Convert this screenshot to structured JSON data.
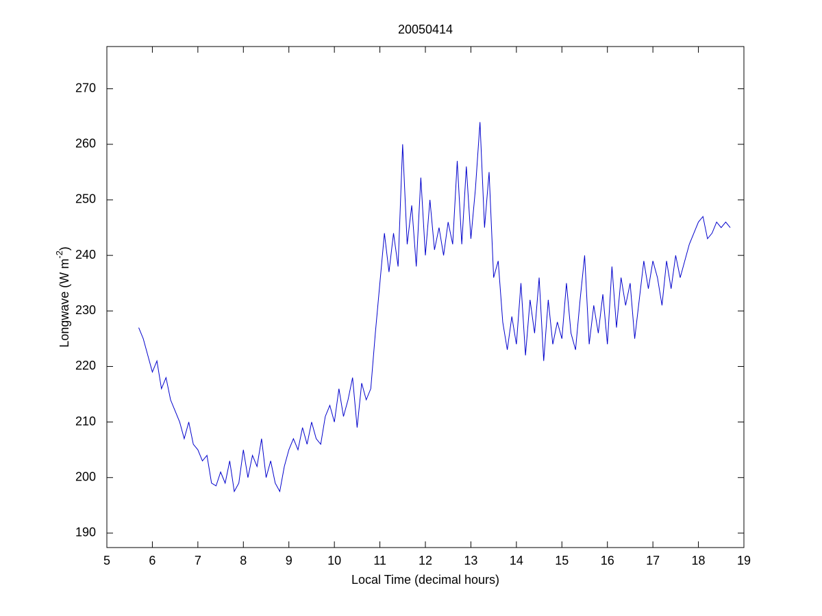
{
  "chart_data": {
    "type": "line",
    "title": "20050414",
    "xlabel": "Local Time (decimal hours)",
    "ylabel": [
      "Longwave (W m",
      "-2",
      ")"
    ],
    "xlim": [
      5,
      19
    ],
    "ylim": [
      187.4,
      277.6
    ],
    "xticks": [
      5,
      6,
      7,
      8,
      9,
      10,
      11,
      12,
      13,
      14,
      15,
      16,
      17,
      18,
      19
    ],
    "yticks": [
      190,
      200,
      210,
      220,
      230,
      240,
      250,
      260,
      270
    ],
    "x": [
      5.7,
      5.8,
      5.9,
      6.0,
      6.1,
      6.2,
      6.3,
      6.4,
      6.5,
      6.6,
      6.7,
      6.8,
      6.9,
      7.0,
      7.1,
      7.2,
      7.3,
      7.4,
      7.5,
      7.6,
      7.7,
      7.8,
      7.9,
      8.0,
      8.1,
      8.2,
      8.3,
      8.4,
      8.5,
      8.6,
      8.7,
      8.8,
      8.9,
      9.0,
      9.1,
      9.2,
      9.3,
      9.4,
      9.5,
      9.6,
      9.7,
      9.8,
      9.9,
      10.0,
      10.1,
      10.2,
      10.3,
      10.4,
      10.5,
      10.6,
      10.7,
      10.8,
      10.9,
      11.0,
      11.1,
      11.2,
      11.3,
      11.4,
      11.5,
      11.6,
      11.7,
      11.8,
      11.9,
      12.0,
      12.1,
      12.2,
      12.3,
      12.4,
      12.5,
      12.6,
      12.7,
      12.8,
      12.9,
      13.0,
      13.1,
      13.2,
      13.3,
      13.4,
      13.5,
      13.6,
      13.7,
      13.8,
      13.9,
      14.0,
      14.1,
      14.2,
      14.3,
      14.4,
      14.5,
      14.6,
      14.7,
      14.8,
      14.9,
      15.0,
      15.1,
      15.2,
      15.3,
      15.4,
      15.5,
      15.6,
      15.7,
      15.8,
      15.9,
      16.0,
      16.1,
      16.2,
      16.3,
      16.4,
      16.5,
      16.6,
      16.7,
      16.8,
      16.9,
      17.0,
      17.1,
      17.2,
      17.3,
      17.4,
      17.5,
      17.6,
      17.7,
      17.8,
      17.9,
      18.0,
      18.1,
      18.2,
      18.3,
      18.4,
      18.5,
      18.6,
      18.7
    ],
    "series": [
      {
        "color": "#0000cc",
        "values": [
          227,
          225,
          222,
          219,
          221,
          216,
          218,
          214,
          212,
          210,
          207,
          210,
          206,
          205,
          203,
          204,
          199,
          198.5,
          201,
          199,
          203,
          197.5,
          199,
          205,
          200,
          204,
          202,
          207,
          200,
          203,
          199,
          197.5,
          202,
          205,
          207,
          205,
          209,
          206,
          210,
          207,
          206,
          211,
          213,
          210,
          216,
          211,
          214,
          218,
          209,
          217,
          214,
          216,
          226,
          235,
          244,
          237,
          244,
          238,
          260,
          242,
          249,
          238,
          254,
          240,
          250,
          241,
          245,
          240,
          246,
          242,
          257,
          242,
          256,
          243,
          252,
          264,
          245,
          255,
          236,
          239,
          228,
          223,
          229,
          224,
          235,
          222,
          232,
          226,
          236,
          221,
          232,
          224,
          228,
          225,
          235,
          226,
          223,
          232,
          240,
          224,
          231,
          226,
          233,
          224,
          238,
          227,
          236,
          231,
          235,
          225,
          232,
          239,
          234,
          239,
          236,
          231,
          239,
          234,
          240,
          236,
          239,
          242,
          244,
          246,
          247,
          243,
          244,
          246,
          245,
          246,
          245
        ]
      }
    ]
  }
}
